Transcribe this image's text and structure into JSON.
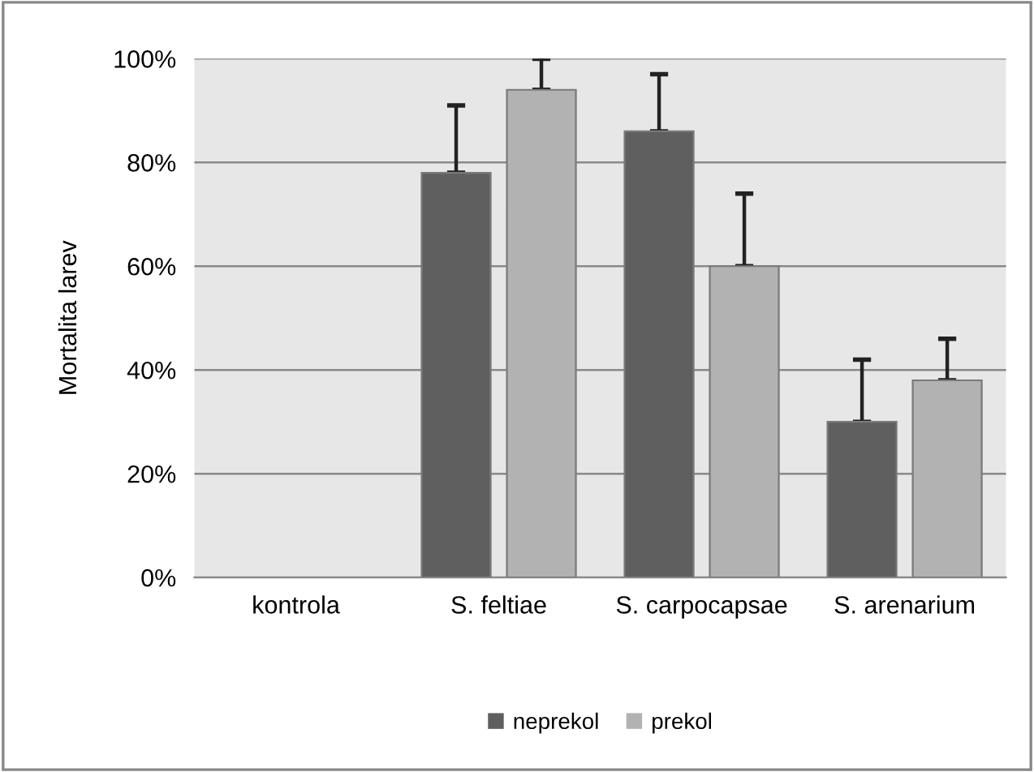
{
  "chart_data": {
    "type": "bar",
    "ylabel": "Mortalita larev",
    "categories": [
      "kontrola",
      "S. feltiae",
      "S. carpocapsae",
      "S. arenarium"
    ],
    "series": [
      {
        "name": "neprekol",
        "color": "#5f5f5f",
        "values": [
          0,
          78,
          86,
          30
        ],
        "errors": [
          null,
          [
            78,
            91
          ],
          [
            86,
            97
          ],
          [
            30,
            42
          ]
        ]
      },
      {
        "name": "prekol",
        "color": "#b2b2b2",
        "values": [
          0,
          94,
          60,
          38
        ],
        "errors": [
          null,
          [
            94,
            100
          ],
          [
            60,
            74
          ],
          [
            38,
            46
          ]
        ]
      }
    ],
    "ylim": [
      0,
      100
    ],
    "yticks": [
      {
        "value": 0,
        "label": "0%"
      },
      {
        "value": 20,
        "label": "20%"
      },
      {
        "value": 40,
        "label": "40%"
      },
      {
        "value": 60,
        "label": "60%"
      },
      {
        "value": 80,
        "label": "80%"
      },
      {
        "value": 100,
        "label": "100%"
      }
    ],
    "grid": "y",
    "legend": "bottom"
  }
}
